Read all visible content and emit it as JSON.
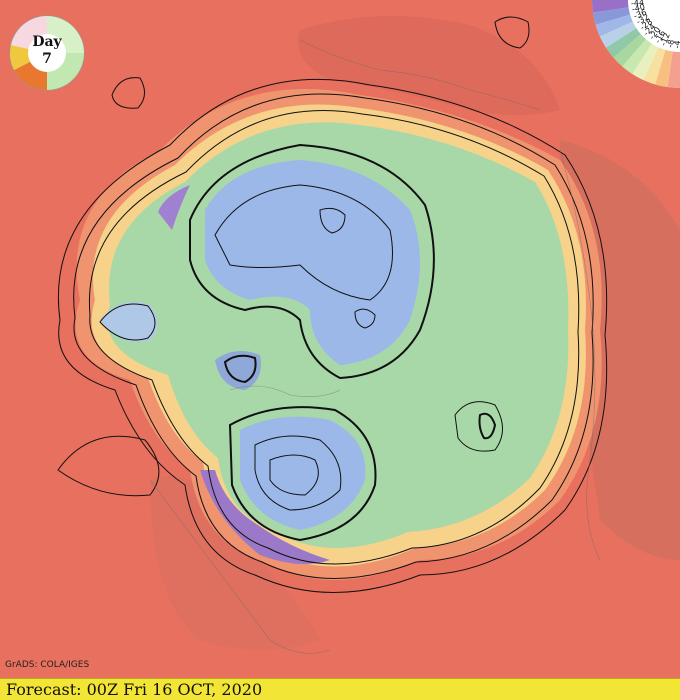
{
  "day_badge": {
    "label": "Day",
    "value": "7"
  },
  "legend": {
    "ticks": [
      "-4",
      "-8",
      "-12",
      "-16",
      "-20",
      "-24",
      "-28",
      "-32",
      "-36",
      "-40",
      "-44"
    ],
    "colors": [
      "#f4a090",
      "#f8c080",
      "#f8e0a0",
      "#e8f0c0",
      "#c8e8b0",
      "#a8d8a0",
      "#90c8a8",
      "#b8d0e8",
      "#a0b8e8",
      "#8898d8",
      "#9870c8"
    ]
  },
  "credit": "GrADS: COLA/IGES",
  "footer": {
    "forecast": "Forecast: 00Z Fri 16 OCT, 2020"
  },
  "colors": {
    "warm_background": "#e8705e",
    "cold_core": "#9cb8e8",
    "green_band": "#a8d8a8",
    "footer_bar": "#f2e535"
  }
}
